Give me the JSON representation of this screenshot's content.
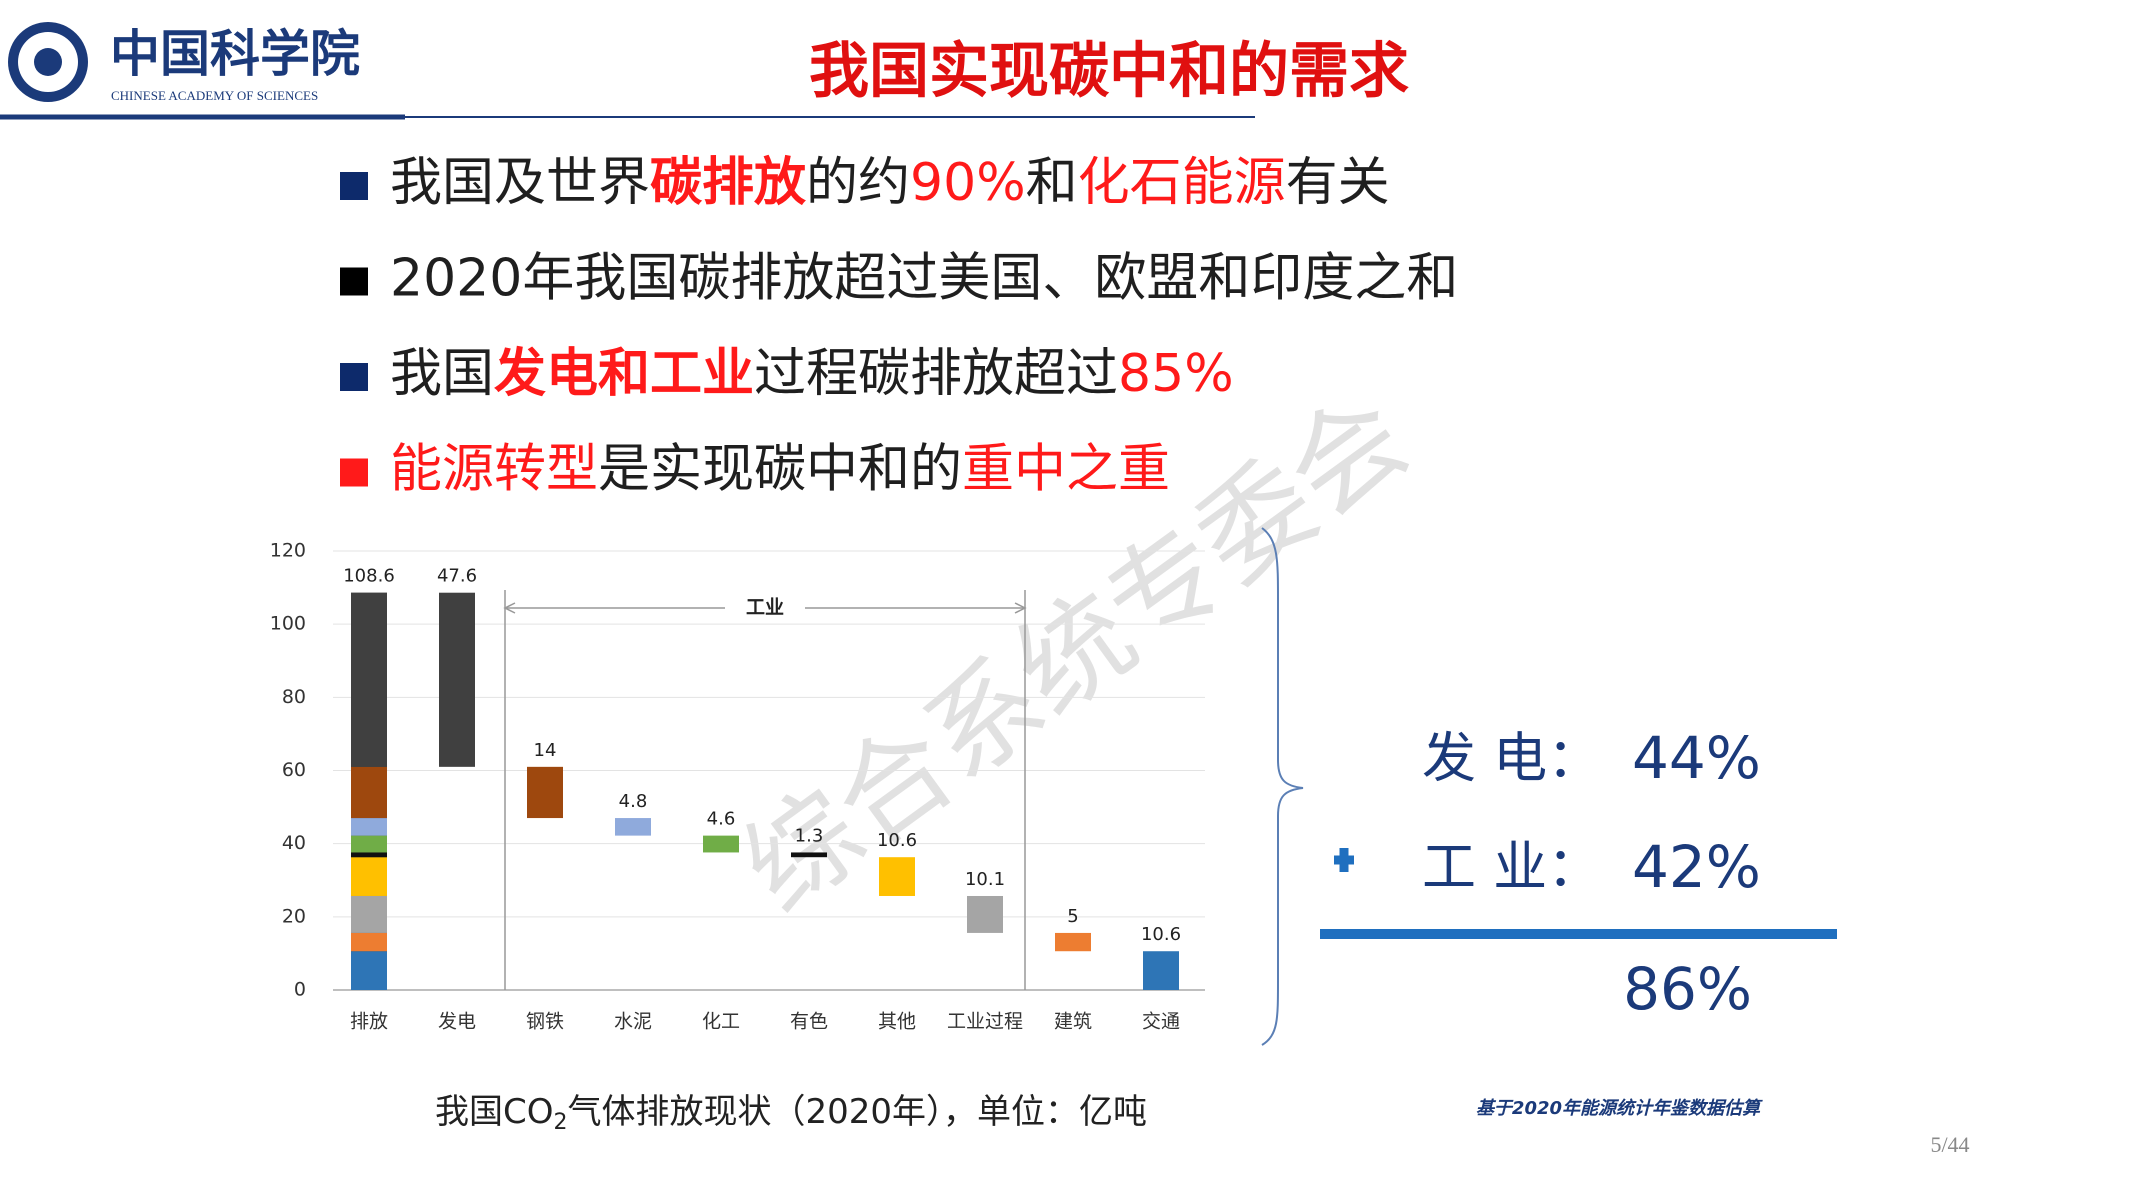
{
  "header": {
    "logo_cn": "中国科学院",
    "logo_en": "CHINESE ACADEMY OF SCIENCES",
    "title": "我国实现碳中和的需求"
  },
  "bullets": [
    {
      "marker_color": "#0d2a6b",
      "segments": [
        {
          "text": "我国及世界"
        },
        {
          "text": "碳排放",
          "color": "#ff1a1a",
          "bold": true
        },
        {
          "text": "的约"
        },
        {
          "text": "90%",
          "color": "#ff1a1a"
        },
        {
          "text": "和"
        },
        {
          "text": "化石能源",
          "color": "#ff1a1a"
        },
        {
          "text": "有关"
        }
      ]
    },
    {
      "marker_color": "#000000",
      "segments": [
        {
          "text": "2020年我国碳排放超过美国、欧盟和印度之和"
        }
      ]
    },
    {
      "marker_color": "#0d2a6b",
      "segments": [
        {
          "text": "我国"
        },
        {
          "text": "发电和工业",
          "color": "#ff1a1a",
          "bold": true
        },
        {
          "text": "过程碳排放超过"
        },
        {
          "text": "85%",
          "color": "#ff1a1a"
        }
      ]
    },
    {
      "marker_color": "#ff1a1a",
      "segments": [
        {
          "text": "能源转型",
          "color": "#ff1a1a"
        },
        {
          "text": "是实现碳中和的"
        },
        {
          "text": "重中之重",
          "color": "#ff1a1a"
        }
      ]
    }
  ],
  "chart_data": {
    "type": "waterfall",
    "total": {
      "name": "排放",
      "value": 108.6
    },
    "categories": [
      "发电",
      "钢铁",
      "水泥",
      "化工",
      "有色",
      "其他",
      "工业过程",
      "建筑",
      "交通"
    ],
    "values": [
      47.6,
      14,
      4.8,
      4.6,
      1.3,
      10.6,
      10.1,
      5,
      10.6
    ],
    "colors": [
      "#404040",
      "#9e480e",
      "#8faadc",
      "#70ad47",
      "#111111",
      "#ffc000",
      "#a5a5a5",
      "#ed7d31",
      "#2e75b6"
    ],
    "annotation": "工业",
    "ylim": [
      0,
      120
    ],
    "yticks": [
      0,
      20,
      40,
      60,
      80,
      100,
      120
    ],
    "grid": true
  },
  "caption": {
    "before": "我国CO",
    "subscript": "2",
    "after": "气体排放现状（2020年），单位：亿吨"
  },
  "summary": {
    "items": [
      {
        "label": "发 电：",
        "value": "44%"
      },
      {
        "label": "工 业：",
        "value": "42%"
      }
    ],
    "total": "86%"
  },
  "source_note": "基于2020年能源统计年鉴数据估算",
  "page_number": "5/44",
  "watermark": "综合系统专委会"
}
